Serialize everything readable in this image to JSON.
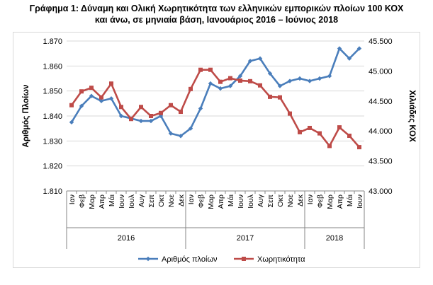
{
  "title": {
    "line1": "Γράφημα 1: Δύναμη και Ολική Χωρητικότητα των ελληνικών εμπορικών πλοίων 100 ΚΟΧ",
    "line2": "και άνω, σε μηνιαία βάση, Ιανουάριος  2016 – Ιούνιος  2018"
  },
  "chart_data": {
    "type": "line",
    "title": "Γράφημα 1: Δύναμη και Ολική Χωρητικότητα των ελληνικών εμπορικών πλοίων 100 ΚΟΧ και άνω, σε μηνιαία βάση, Ιανουάριος  2016 – Ιούνιος  2018",
    "categories": [
      "Ιαν",
      "Φεβ",
      "Μαρ",
      "Απρ",
      "Μάι",
      "Ιουν",
      "Ιουλ",
      "Αυγ",
      "Σεπ",
      "Οκτ",
      "Νοε",
      "Δεκ",
      "Ιαν",
      "Φεβ",
      "Μαρ",
      "Απρ",
      "Μάι",
      "Ιουν",
      "Ιουλ",
      "Αυγ",
      "Σεπ",
      "Οκτ",
      "Νοε",
      "Δεκ",
      "Ιαν",
      "Φεβ",
      "Μαρ",
      "Απρ",
      "Μάι",
      "Ιουν"
    ],
    "year_groups": [
      {
        "label": "2016",
        "count": 12
      },
      {
        "label": "2017",
        "count": 12
      },
      {
        "label": "2018",
        "count": 6
      }
    ],
    "ylabel": "Αριθμός Πλοίων",
    "ylim": [
      1810,
      1870
    ],
    "yticks": [
      "1.810",
      "1.820",
      "1.830",
      "1.840",
      "1.850",
      "1.860",
      "1.870"
    ],
    "y2label": "Χιλιάδες ΚΟΧ",
    "y2lim": [
      43000,
      45500
    ],
    "y2ticks": [
      "43.000",
      "43.500",
      "44.000",
      "44.500",
      "45.000",
      "45.500"
    ],
    "series": [
      {
        "name": "Αριθμός πλοίων",
        "axis": "left",
        "color": "#4a7ebb",
        "marker": "diamond",
        "values": [
          1837.5,
          1844,
          1848,
          1846,
          1847,
          1840,
          1839,
          1838,
          1838,
          1840,
          1833,
          1832,
          1835,
          1843,
          1853,
          1851,
          1852,
          1856,
          1862,
          1863,
          1857,
          1852,
          1854,
          1855,
          1854,
          1855,
          1856,
          1867,
          1863,
          1867
        ]
      },
      {
        "name": "Χωρητικότητα",
        "axis": "right",
        "color": "#be4b48",
        "marker": "square",
        "values": [
          44430,
          44660,
          44720,
          44560,
          44790,
          44400,
          44200,
          44400,
          44250,
          44300,
          44430,
          44320,
          44700,
          45020,
          45020,
          44820,
          44880,
          44840,
          44830,
          44760,
          44570,
          44560,
          44290,
          43980,
          44050,
          43960,
          43750,
          44060,
          43920,
          43730
        ]
      }
    ],
    "legend_position": "bottom",
    "grid": true
  }
}
